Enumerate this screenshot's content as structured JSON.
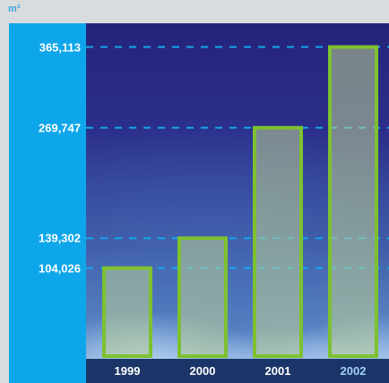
{
  "chart_data": {
    "type": "bar",
    "ylabel": "m³",
    "categories": [
      "1999",
      "2000",
      "2001",
      "2002"
    ],
    "values": [
      104026,
      139302,
      269747,
      365113
    ],
    "data_labels": [
      "104,026",
      "139,302",
      "269,747",
      "365,113"
    ],
    "ylim": [
      0,
      390000
    ],
    "grid": "dashed lines at each bar value",
    "colors": {
      "bar_outline": "#7ec12f",
      "bar_fill": "rgba(190, 210, 150, 0.55)",
      "gridline": "#12a8ea",
      "axis_panel": "#0ea6ea",
      "x_axis_band": "#1b3568",
      "highlight_label": "#9fd2f4"
    },
    "highlighted_category": "2002"
  }
}
